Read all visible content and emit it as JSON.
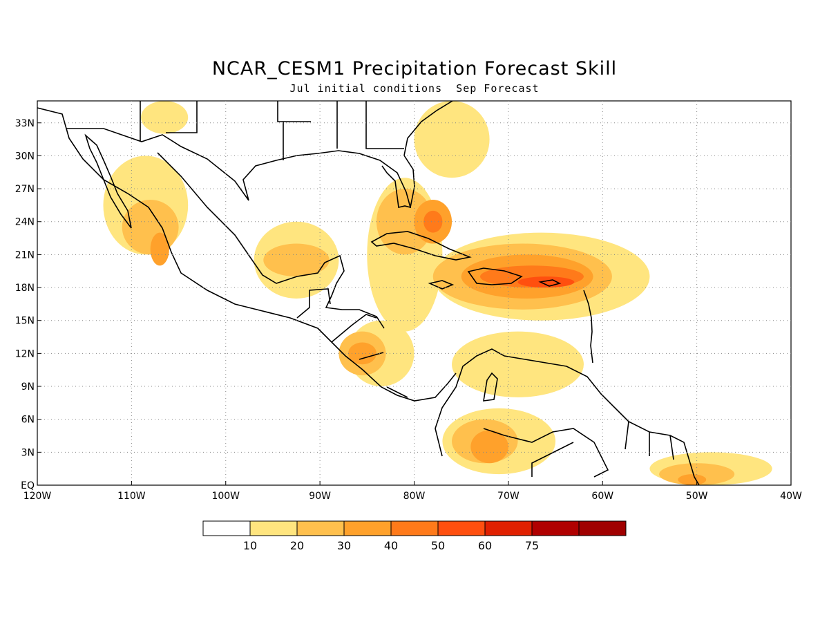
{
  "title": "NCAR_CESM1 Precipitation Forecast Skill",
  "subtitle": "Jul initial conditions  Sep Forecast",
  "map": {
    "lon_range": [
      -120,
      -40
    ],
    "lat_range": [
      0,
      35
    ],
    "lon_ticks": [
      {
        "value": -120,
        "label": "120W"
      },
      {
        "value": -110,
        "label": "110W"
      },
      {
        "value": -100,
        "label": "100W"
      },
      {
        "value": -90,
        "label": "90W"
      },
      {
        "value": -80,
        "label": "80W"
      },
      {
        "value": -70,
        "label": "70W"
      },
      {
        "value": -60,
        "label": "60W"
      },
      {
        "value": -50,
        "label": "50W"
      },
      {
        "value": -40,
        "label": "40W"
      }
    ],
    "lat_ticks": [
      {
        "value": 0,
        "label": "EQ"
      },
      {
        "value": 3,
        "label": "3N"
      },
      {
        "value": 6,
        "label": "6N"
      },
      {
        "value": 9,
        "label": "9N"
      },
      {
        "value": 12,
        "label": "12N"
      },
      {
        "value": 15,
        "label": "15N"
      },
      {
        "value": 18,
        "label": "18N"
      },
      {
        "value": 21,
        "label": "21N"
      },
      {
        "value": 24,
        "label": "24N"
      },
      {
        "value": 27,
        "label": "27N"
      },
      {
        "value": 30,
        "label": "30N"
      },
      {
        "value": 33,
        "label": "33N"
      }
    ],
    "grid": true,
    "skill_regions": [
      {
        "level": 10,
        "lon": [
          -113,
          -104
        ],
        "lat": [
          21,
          30
        ]
      },
      {
        "level": 10,
        "lon": [
          -109,
          -104
        ],
        "lat": [
          32,
          35
        ]
      },
      {
        "level": 10,
        "lon": [
          -97,
          -88
        ],
        "lat": [
          17,
          24
        ]
      },
      {
        "level": 10,
        "lon": [
          -87,
          -80
        ],
        "lat": [
          9,
          15
        ]
      },
      {
        "level": 10,
        "lon": [
          -85,
          -77
        ],
        "lat": [
          14,
          28
        ]
      },
      {
        "level": 10,
        "lon": [
          -78,
          -55
        ],
        "lat": [
          15,
          23
        ]
      },
      {
        "level": 10,
        "lon": [
          -80,
          -72
        ],
        "lat": [
          28,
          35
        ]
      },
      {
        "level": 10,
        "lon": [
          -76,
          -62
        ],
        "lat": [
          8,
          14
        ]
      },
      {
        "level": 10,
        "lon": [
          -77,
          -65
        ],
        "lat": [
          1,
          7
        ]
      },
      {
        "level": 10,
        "lon": [
          -55,
          -42
        ],
        "lat": [
          0,
          3
        ]
      },
      {
        "level": 20,
        "lon": [
          -111,
          -105
        ],
        "lat": [
          21,
          26
        ]
      },
      {
        "level": 20,
        "lon": [
          -96,
          -89
        ],
        "lat": [
          19,
          22
        ]
      },
      {
        "level": 20,
        "lon": [
          -88,
          -83
        ],
        "lat": [
          10,
          14
        ]
      },
      {
        "level": 20,
        "lon": [
          -84,
          -78
        ],
        "lat": [
          21,
          27
        ]
      },
      {
        "level": 20,
        "lon": [
          -78,
          -59
        ],
        "lat": [
          16,
          22
        ]
      },
      {
        "level": 20,
        "lon": [
          -76,
          -69
        ],
        "lat": [
          2,
          6
        ]
      },
      {
        "level": 20,
        "lon": [
          -54,
          -46
        ],
        "lat": [
          0,
          2
        ]
      },
      {
        "level": 30,
        "lon": [
          -108,
          -106
        ],
        "lat": [
          20,
          23
        ]
      },
      {
        "level": 30,
        "lon": [
          -87,
          -84
        ],
        "lat": [
          11,
          13
        ]
      },
      {
        "level": 30,
        "lon": [
          -80,
          -76
        ],
        "lat": [
          22,
          26
        ]
      },
      {
        "level": 30,
        "lon": [
          -75,
          -61
        ],
        "lat": [
          17,
          21
        ]
      },
      {
        "level": 30,
        "lon": [
          -74,
          -70
        ],
        "lat": [
          2,
          5
        ]
      },
      {
        "level": 30,
        "lon": [
          -52,
          -49
        ],
        "lat": [
          0,
          1
        ]
      },
      {
        "level": 40,
        "lon": [
          -79,
          -77
        ],
        "lat": [
          23,
          25
        ]
      },
      {
        "level": 40,
        "lon": [
          -73,
          -62
        ],
        "lat": [
          18,
          20
        ]
      },
      {
        "level": 50,
        "lon": [
          -69,
          -63
        ],
        "lat": [
          18,
          19
        ]
      }
    ]
  },
  "colorbar": {
    "colors": [
      "#ffffff",
      "#ffe57f",
      "#ffc04d",
      "#ffa12b",
      "#ff7a1a",
      "#ff4f0f",
      "#e02000",
      "#b00000",
      "#a00000"
    ],
    "labels": [
      "10",
      "20",
      "30",
      "40",
      "50",
      "60",
      "75"
    ]
  }
}
